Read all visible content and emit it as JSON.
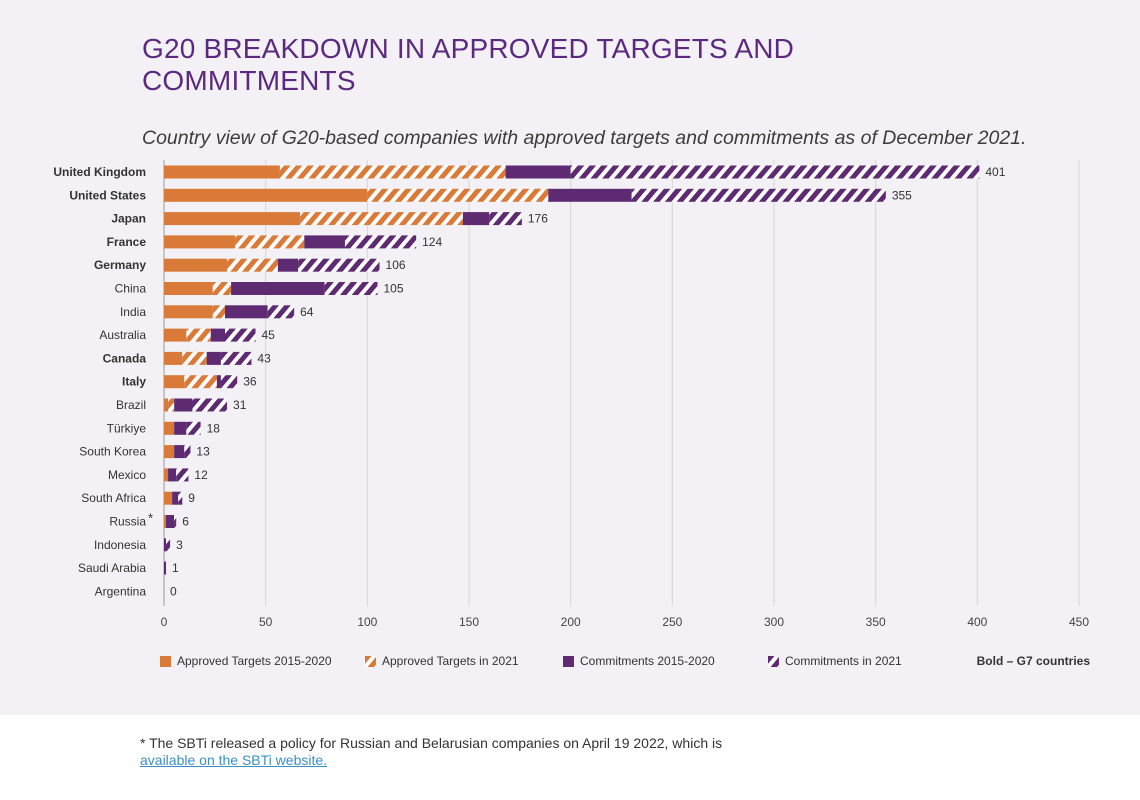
{
  "title": "G20 BREAKDOWN IN APPROVED TARGETS AND COMMITMENTS",
  "subtitle": "Country view of G20-based companies with approved targets and commitments as of December 2021.",
  "legend": {
    "items": [
      {
        "label": "Approved Targets 2015-2020",
        "color": "#d97a38",
        "pattern": "solid"
      },
      {
        "label": "Approved Targets in 2021",
        "color": "#d97a38",
        "pattern": "hatch"
      },
      {
        "label": "Commitments 2015-2020",
        "color": "#5e2a72",
        "pattern": "solid"
      },
      {
        "label": "Commitments in 2021",
        "color": "#5e2a72",
        "pattern": "hatch"
      }
    ],
    "note": "Bold – G7 countries"
  },
  "footnote": {
    "text": "* The SBTi released a policy for Russian and Belarusian companies on April 19 2022, which is",
    "link": "available on the SBTi website."
  },
  "chart_data": {
    "type": "bar",
    "orientation": "horizontal",
    "stacked": true,
    "xlim": [
      0,
      450
    ],
    "xticks": [
      0,
      50,
      100,
      150,
      200,
      250,
      300,
      350,
      400,
      450
    ],
    "grid": true,
    "categories": [
      "United Kingdom",
      "United States",
      "Japan",
      "France",
      "Germany",
      "China",
      "India",
      "Australia",
      "Canada",
      "Italy",
      "Brazil",
      "Türkiye",
      "South Korea",
      "Mexico",
      "South Africa",
      "Russia",
      "Indonesia",
      "Saudi Arabia",
      "Argentina"
    ],
    "g7": [
      true,
      true,
      true,
      true,
      true,
      false,
      false,
      false,
      true,
      true,
      false,
      false,
      false,
      false,
      false,
      false,
      false,
      false,
      false
    ],
    "markers": [
      "",
      "",
      "",
      "",
      "",
      "",
      "",
      "",
      "",
      "",
      "",
      "",
      "",
      "",
      "",
      "*",
      "",
      "",
      ""
    ],
    "totals": [
      401,
      355,
      176,
      124,
      106,
      105,
      64,
      45,
      43,
      36,
      31,
      18,
      13,
      12,
      9,
      6,
      3,
      1,
      0
    ],
    "series": [
      {
        "name": "Approved Targets 2015-2020",
        "values": [
          57,
          100,
          67,
          35,
          31,
          24,
          24,
          11,
          9,
          10,
          2,
          5,
          5,
          2,
          4,
          1,
          0,
          0,
          0
        ]
      },
      {
        "name": "Approved Targets in 2021",
        "values": [
          111,
          89,
          80,
          34,
          25,
          9,
          6,
          12,
          12,
          16,
          3,
          0,
          0,
          0,
          0,
          0,
          0,
          0,
          0
        ]
      },
      {
        "name": "Commitments 2015-2020",
        "values": [
          32,
          41,
          13,
          20,
          10,
          46,
          21,
          7,
          7,
          2,
          9,
          6,
          5,
          4,
          3,
          4,
          1,
          1,
          0
        ]
      },
      {
        "name": "Commitments in 2021",
        "values": [
          201,
          125,
          16,
          35,
          40,
          26,
          13,
          15,
          15,
          8,
          17,
          7,
          3,
          6,
          2,
          1,
          2,
          0,
          0
        ]
      }
    ]
  }
}
